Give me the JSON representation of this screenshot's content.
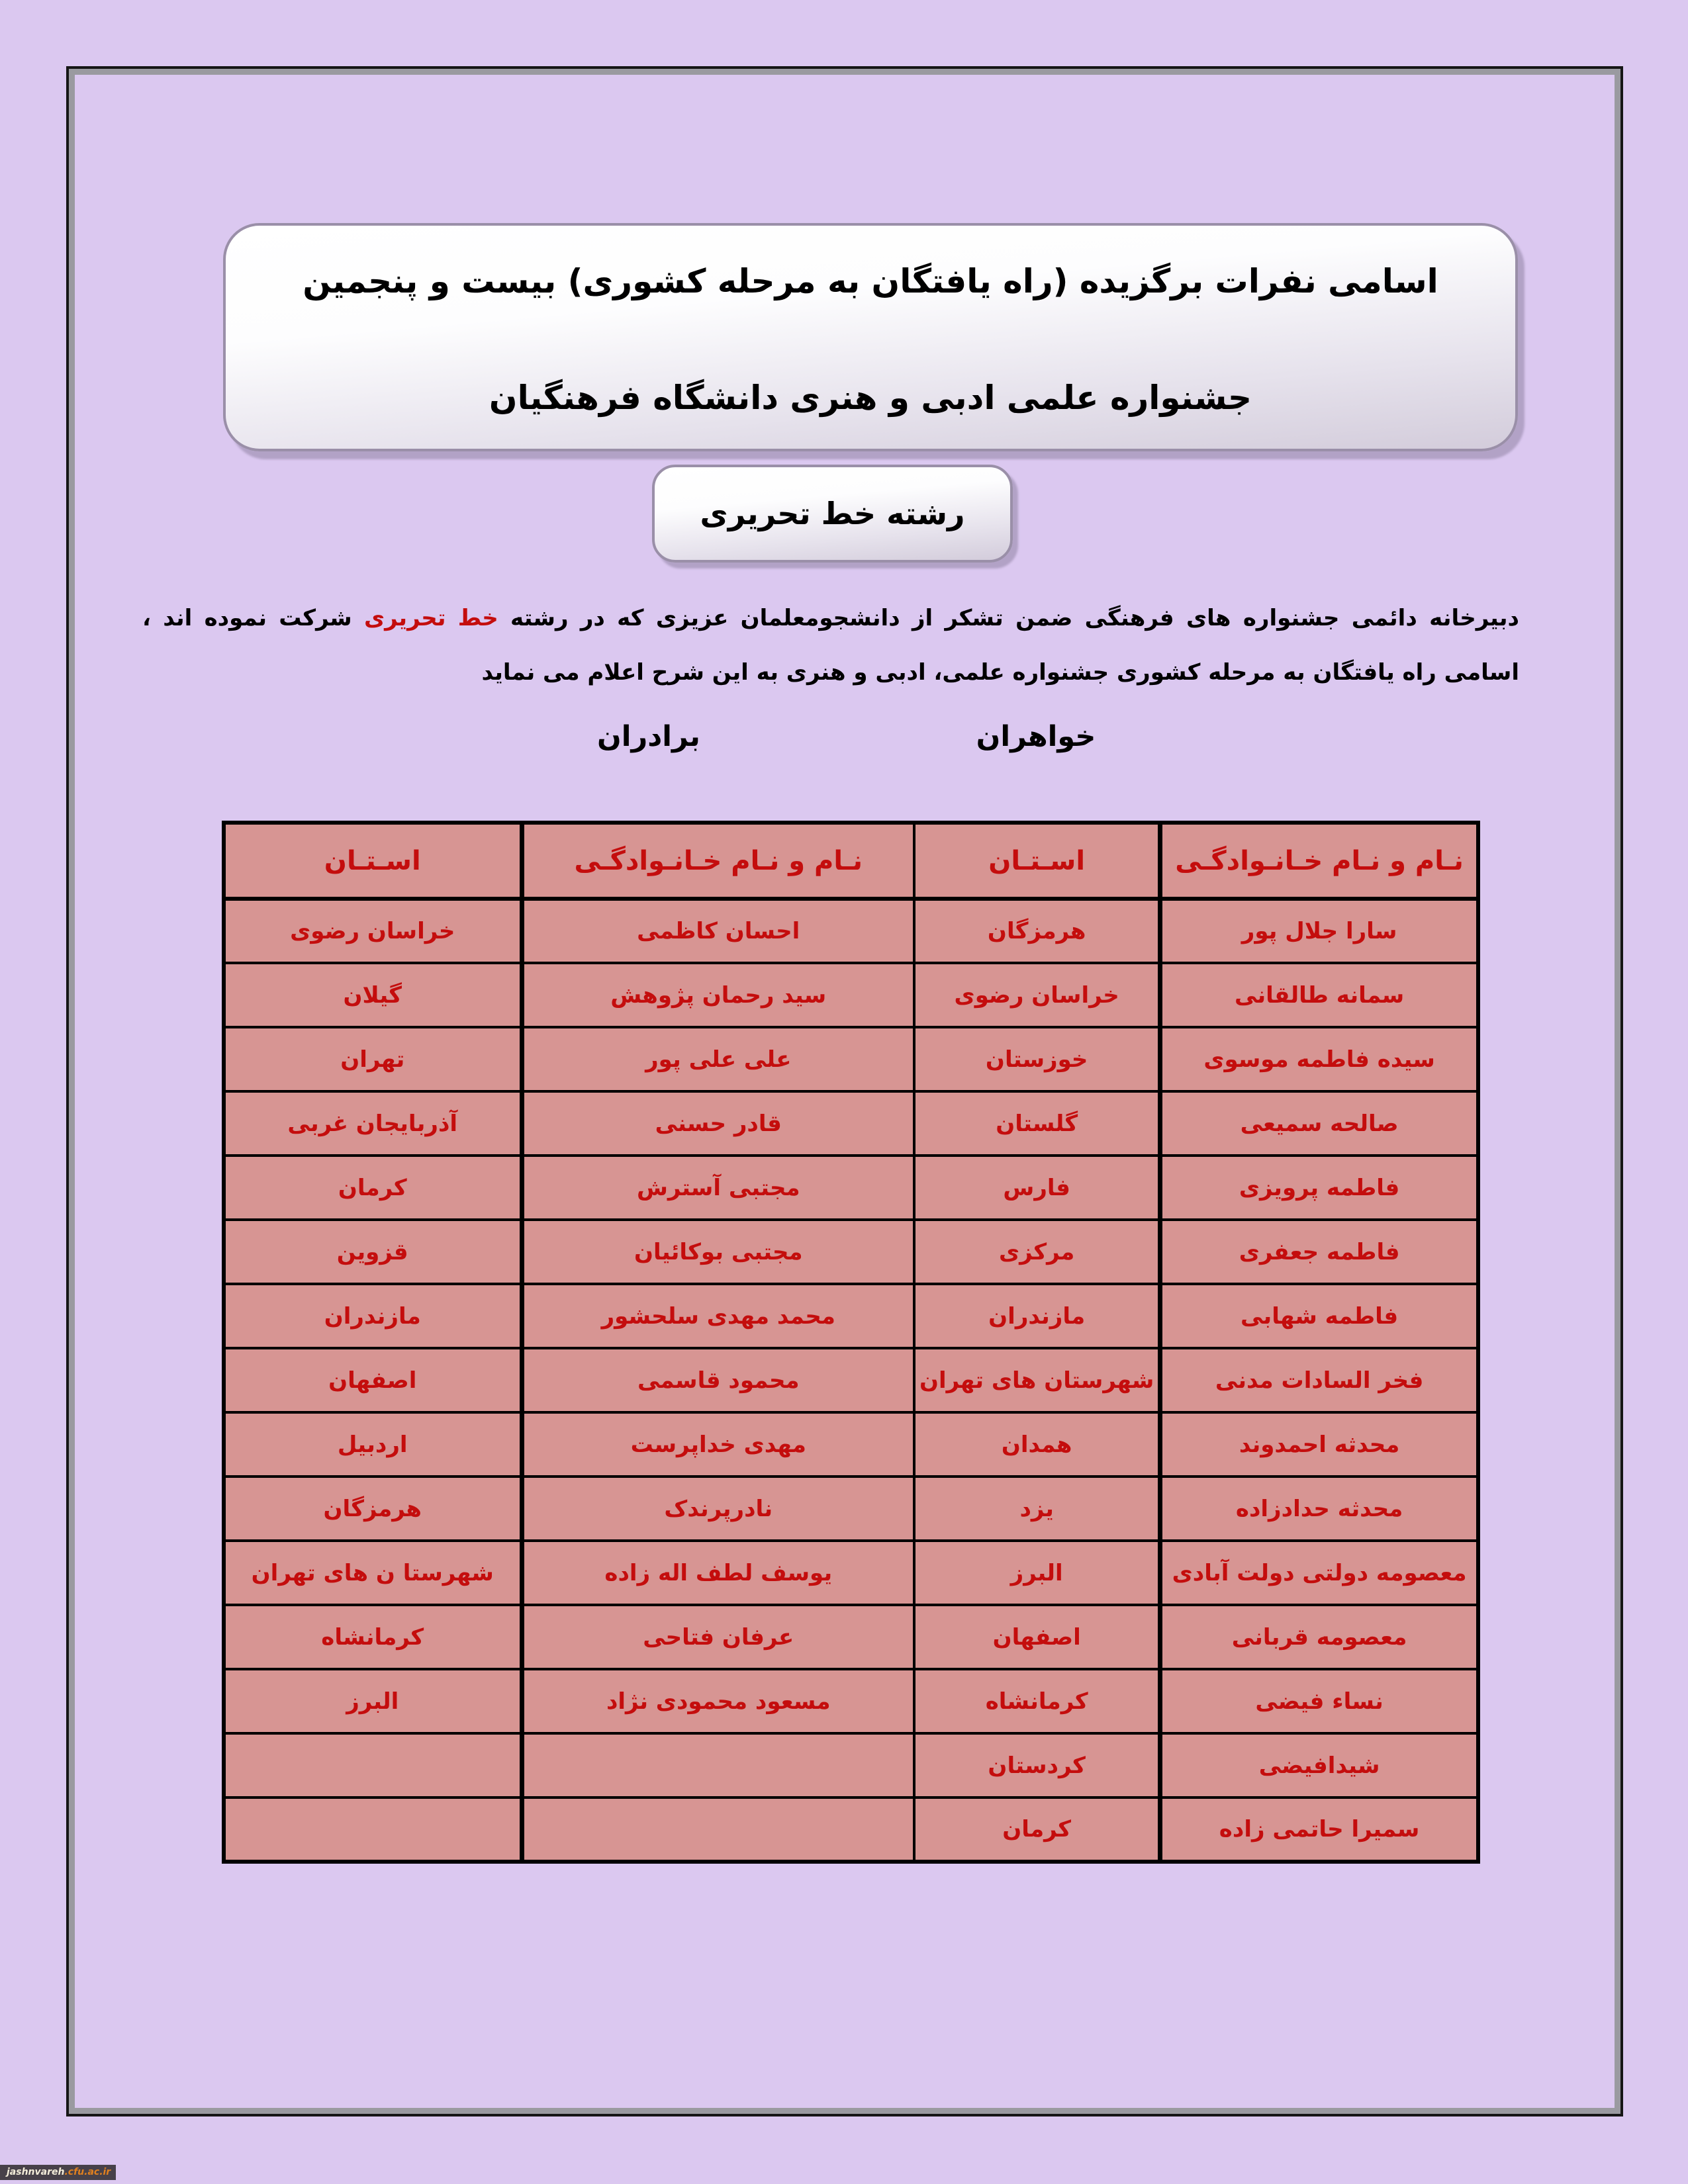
{
  "page": {
    "title_line1": "اسامی نفرات برگزیده (راه یافتگان به  مرحله کشوری) بیست و پنجمین",
    "title_line2": "جشنواره علمی ادبی و هنری دانشگاه فرهنگیان",
    "badge": "رشته خط تحریری",
    "intro": {
      "before": "دبیرخانه دائمی جشنواره های فرهنگی ضمن تشکر از دانشجومعلمان عزیزی که در رشته ",
      "highlight": "خط تحریری",
      "after": "  شرکت نموده اند ، اسامی راه یافتگان به مرحله کشوری جشنواره علمی، ادبی و هنری به این شرح اعلام می نماید"
    },
    "section_headers": {
      "brothers": "برادران",
      "sisters": "خواهران"
    },
    "watermark": {
      "site": "jashnvareh",
      "domain": ".cfu.ac.ir"
    },
    "colors": {
      "page_background": "#dbc8f0",
      "cell_pink": "#d79593",
      "table_text_red": "#c40d0d",
      "highlight_red": "#c40d0d",
      "watermark_orange": "#e0801f",
      "watermark_background": "#474149"
    }
  },
  "table": {
    "headers": {
      "province": "اسـتـان",
      "name": "نـام و نـام خـانـوادگـی",
      "name_wrapped": "نـام و نـام\nخـانـوادگـی"
    },
    "rows": [
      {
        "s_name": "سارا جلال پور",
        "s_province": "هرمزگان",
        "b_name": "احسان کاظمی",
        "b_province": "خراسان رضوی"
      },
      {
        "s_name": "سمانه طالقانی",
        "s_province": "خراسان رضوی",
        "b_name": "سید رحمان پژوهش",
        "b_province": "گیلان"
      },
      {
        "s_name": "سیده فاطمه موسوی",
        "s_province": "خوزستان",
        "b_name": "علی علی پور",
        "b_province": "تهران"
      },
      {
        "s_name": "صالحه سمیعی",
        "s_province": "گلستان",
        "b_name": "قادر حسنی",
        "b_province": "آذربایجان غربی"
      },
      {
        "s_name": "فاطمه پرویزی",
        "s_province": "فارس",
        "b_name": "مجتبی آسترش",
        "b_province": "کرمان"
      },
      {
        "s_name": "فاطمه جعفری",
        "s_province": "مرکزی",
        "b_name": "مجتبی بوکائیان",
        "b_province": "قزوین"
      },
      {
        "s_name": "فاطمه شهابی",
        "s_province": "مازندران",
        "b_name": "محمد مهدی سلحشور",
        "b_province": "مازندران"
      },
      {
        "s_name": "فخر السادات مدنی",
        "s_province": "شهرستان های تهران",
        "b_name": "محمود قاسمی",
        "b_province": "اصفهان"
      },
      {
        "s_name": "محدثه احمدوند",
        "s_province": "همدان",
        "b_name": "مهدی خداپرست",
        "b_province": "اردبیل"
      },
      {
        "s_name": "محدثه حدادزاده",
        "s_province": "یزد",
        "b_name": "نادرپرندک",
        "b_province": "هرمزگان"
      },
      {
        "s_name": "معصومه دولتی دولت آبادی",
        "s_province": "البرز",
        "b_name": "یوسف لطف اله زاده",
        "b_province": "شهرستا ن های تهران"
      },
      {
        "s_name": "معصومه قربانی",
        "s_province": "اصفهان",
        "b_name": "عرفان فتاحی",
        "b_province": "کرمانشاه"
      },
      {
        "s_name": "نساء فیضی",
        "s_province": "کرمانشاه",
        "b_name": "مسعود محمودی نژاد",
        "b_province": "البرز"
      },
      {
        "s_name": "شیدافیضی",
        "s_province": "کردستان",
        "b_name": "",
        "b_province": ""
      },
      {
        "s_name": "سمیرا حاتمی زاده",
        "s_province": "کرمان",
        "b_name": "",
        "b_province": ""
      }
    ]
  }
}
